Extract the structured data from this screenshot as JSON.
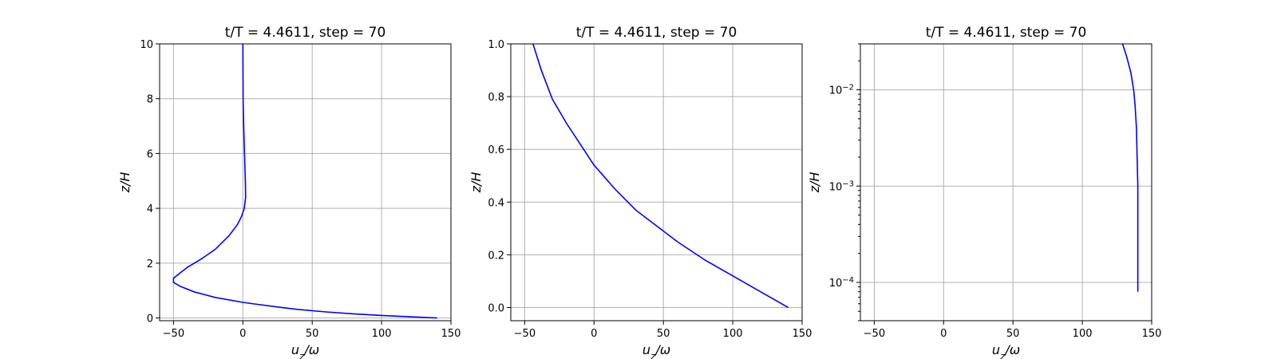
{
  "chart_data": [
    {
      "type": "line",
      "title": "t/T = 4.4611, step = 70",
      "xlabel": "u_z/ω",
      "ylabel": "z/H",
      "xlim": [
        -60,
        150
      ],
      "ylim": [
        -0.1,
        10
      ],
      "yscale": "linear",
      "grid": true,
      "xticks": [
        -50,
        0,
        50,
        100,
        150
      ],
      "yticks": [
        0,
        2,
        4,
        6,
        8,
        10
      ],
      "ytick_labels": [
        "0",
        "2",
        "4",
        "6",
        "8",
        "10"
      ],
      "series": [
        {
          "color": "#0000ff",
          "x": [
            140,
            100,
            80,
            60,
            40,
            25,
            10,
            0,
            -20,
            -35,
            -45,
            -50,
            -50,
            -45,
            -40,
            -30,
            -20,
            -10,
            -4,
            -1,
            1,
            2,
            1.8,
            1.2,
            0.6,
            0.2,
            0
          ],
          "y": [
            0,
            0.09,
            0.15,
            0.22,
            0.31,
            0.4,
            0.5,
            0.57,
            0.75,
            0.95,
            1.15,
            1.3,
            1.45,
            1.65,
            1.85,
            2.15,
            2.5,
            3.0,
            3.4,
            3.7,
            4.0,
            4.4,
            5.0,
            6.0,
            7.0,
            8.0,
            10.0
          ]
        }
      ]
    },
    {
      "type": "line",
      "title": "t/T = 4.4611, step = 70",
      "xlabel": "u_z/ω",
      "ylabel": "z/H",
      "xlim": [
        -60,
        150
      ],
      "ylim": [
        -0.05,
        1.0
      ],
      "yscale": "linear",
      "grid": true,
      "xticks": [
        -50,
        0,
        50,
        100,
        150
      ],
      "yticks": [
        0,
        0.2,
        0.4,
        0.6,
        0.8,
        1.0
      ],
      "ytick_labels": [
        "0.0",
        "0.2",
        "0.4",
        "0.6",
        "0.8",
        "1.0"
      ],
      "series": [
        {
          "color": "#0000ff",
          "x": [
            140,
            120,
            100,
            80,
            60,
            45,
            30,
            15,
            0,
            -10,
            -20,
            -30,
            -38,
            -44
          ],
          "y": [
            0,
            0.06,
            0.12,
            0.18,
            0.25,
            0.31,
            0.37,
            0.45,
            0.54,
            0.62,
            0.7,
            0.79,
            0.9,
            1.0
          ]
        }
      ]
    },
    {
      "type": "line",
      "title": "t/T = 4.4611, step = 70",
      "xlabel": "u_z/ω",
      "ylabel": "z/H",
      "xlim": [
        -60,
        150
      ],
      "ylim": [
        4e-05,
        0.03
      ],
      "yscale": "log",
      "grid": true,
      "xticks": [
        -50,
        0,
        50,
        100,
        150
      ],
      "yticks": [
        0.0001,
        0.001,
        0.01
      ],
      "ytick_labels": [
        "10−4",
        "10−3",
        "10−2"
      ],
      "series": [
        {
          "color": "#0000ff",
          "x": [
            140,
            140,
            140,
            139.5,
            139,
            138,
            137,
            135,
            132,
            129
          ],
          "y": [
            8e-05,
            0.0003,
            0.001,
            0.002,
            0.004,
            0.007,
            0.01,
            0.015,
            0.022,
            0.03
          ]
        }
      ]
    }
  ]
}
